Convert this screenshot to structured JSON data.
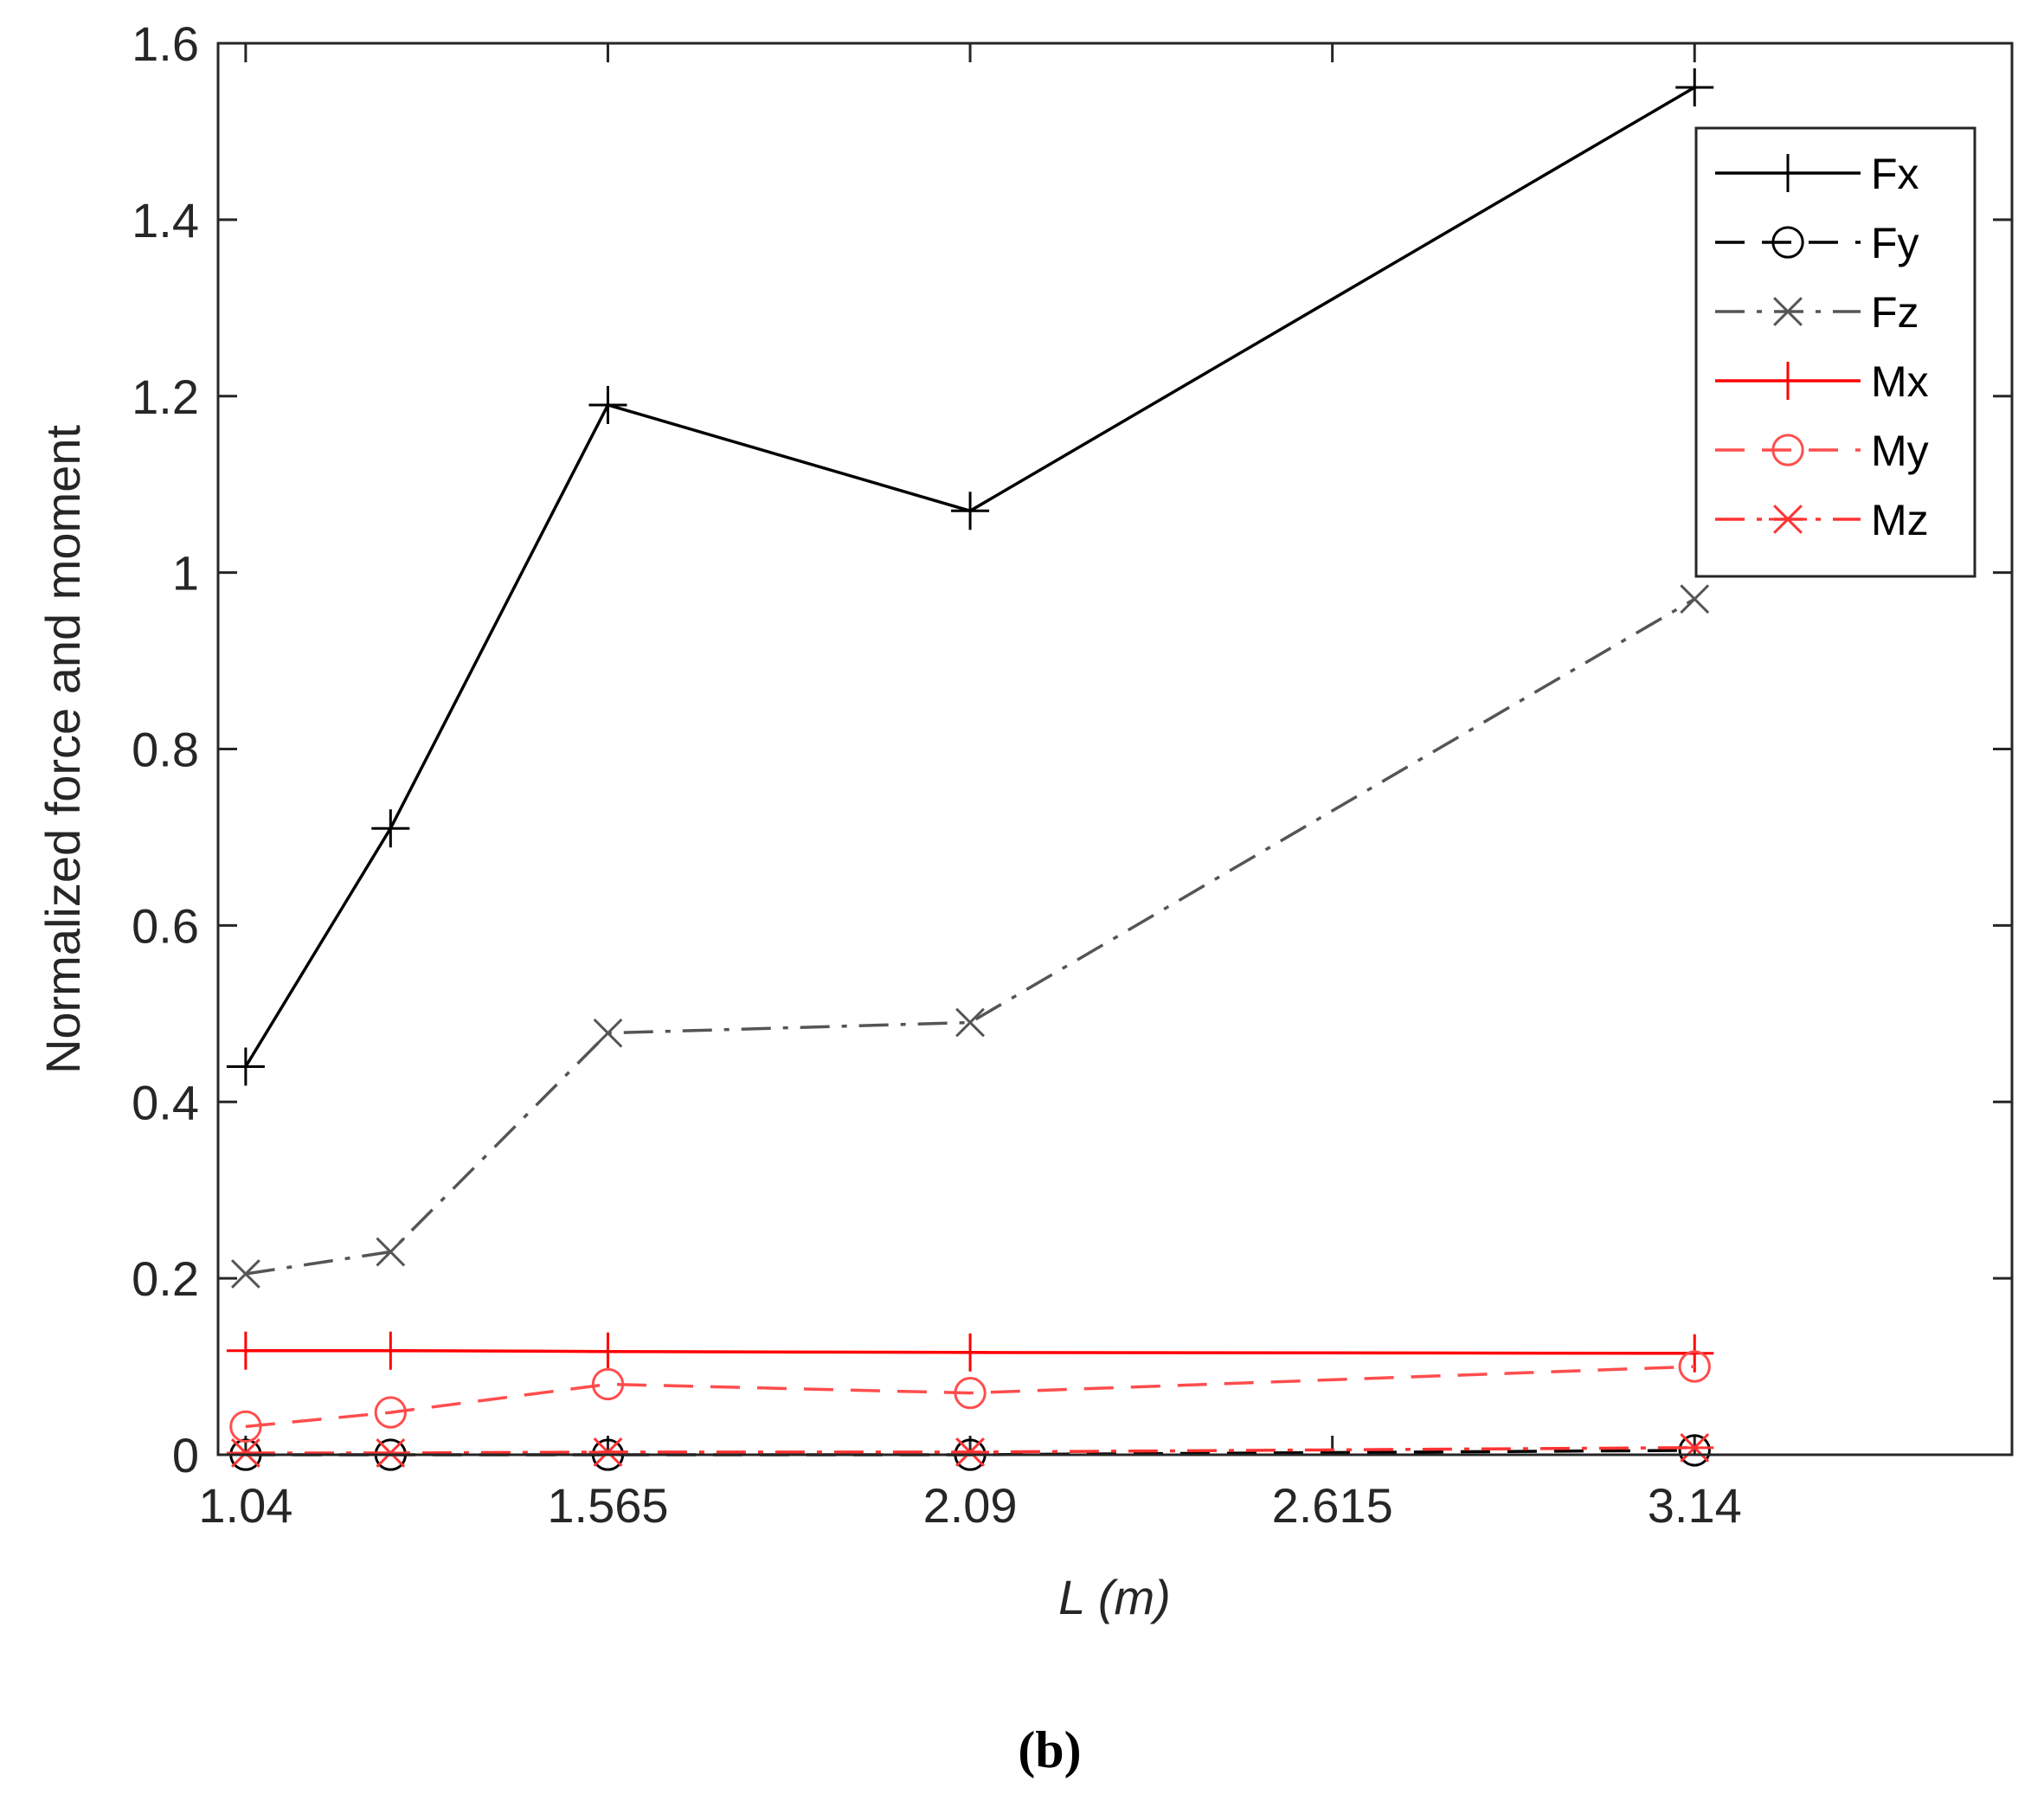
{
  "chart_data": {
    "type": "line",
    "xlabel": "L (m)",
    "ylabel": "Normalized force and moment",
    "xlim": [
      1.0,
      3.6
    ],
    "ylim": [
      0,
      1.6
    ],
    "xticks": [
      1.04,
      1.565,
      2.09,
      2.615,
      3.14
    ],
    "xtick_labels": [
      "1.04",
      "1.565",
      "2.09",
      "2.615",
      "3.14"
    ],
    "yticks": [
      0,
      0.2,
      0.4,
      0.6,
      0.8,
      1.0,
      1.2,
      1.4,
      1.6
    ],
    "ytick_labels": [
      "0",
      "0.2",
      "0.4",
      "0.6",
      "0.8",
      "1",
      "1.2",
      "1.4",
      "1.6"
    ],
    "grid": false,
    "legend_position": "top-right",
    "x": [
      1.04,
      1.25,
      1.565,
      2.09,
      3.14
    ],
    "series": [
      {
        "name": "Fx",
        "values": [
          0.44,
          0.71,
          1.19,
          1.07,
          1.55
        ],
        "color": "#000000",
        "dash": "solid",
        "marker": "plus"
      },
      {
        "name": "Fy",
        "values": [
          0.0,
          0.0,
          0.0,
          0.0,
          0.005
        ],
        "color": "#000000",
        "dash": "dashed",
        "marker": "circle"
      },
      {
        "name": "Fz",
        "values": [
          0.205,
          0.23,
          0.478,
          0.49,
          0.97
        ],
        "color": "#555555",
        "dash": "dashdot",
        "marker": "x"
      },
      {
        "name": "Mx",
        "values": [
          0.118,
          0.118,
          0.117,
          0.116,
          0.115
        ],
        "color": "#ff0000",
        "dash": "solid",
        "marker": "plus"
      },
      {
        "name": "My",
        "values": [
          0.032,
          0.048,
          0.08,
          0.07,
          0.1
        ],
        "color": "#ff4d4d",
        "dash": "dashed",
        "marker": "circle"
      },
      {
        "name": "Mz",
        "values": [
          0.002,
          0.002,
          0.003,
          0.003,
          0.008
        ],
        "color": "#ff3333",
        "dash": "dashdot",
        "marker": "asterisk"
      }
    ],
    "panel_label": "(b)"
  }
}
